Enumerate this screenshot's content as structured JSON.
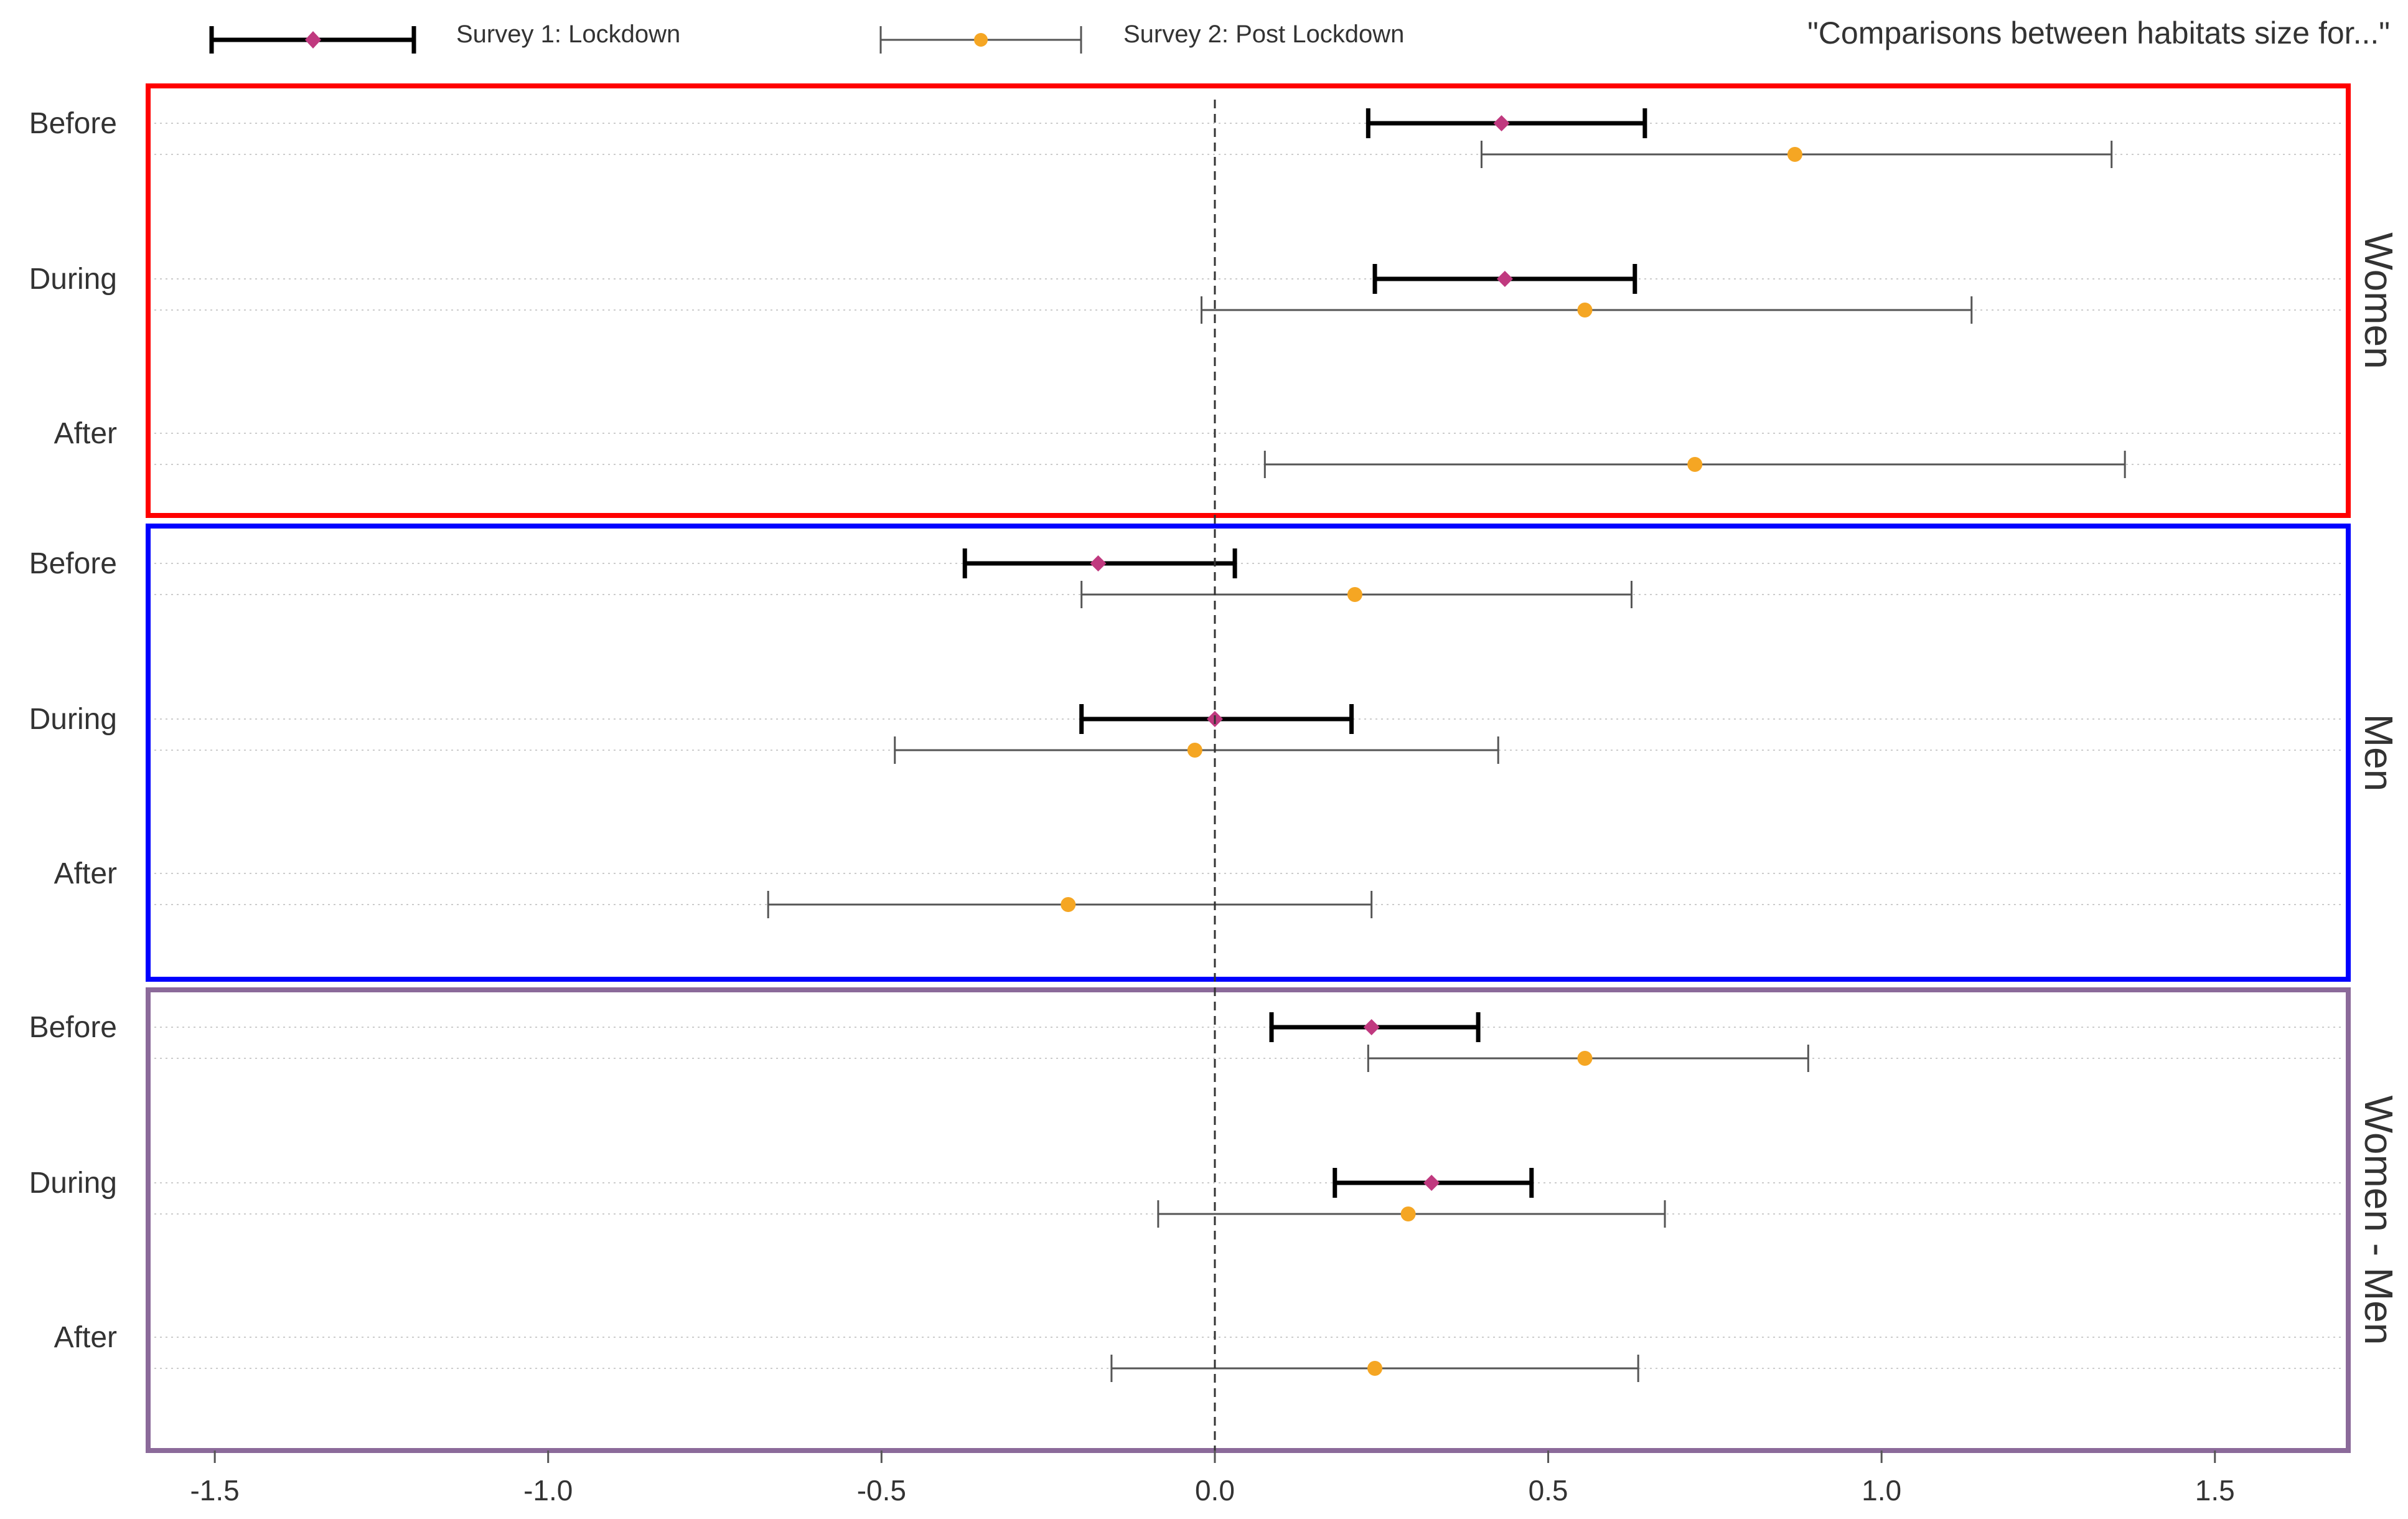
{
  "chart_data": {
    "type": "forest",
    "title": "\"Comparisons between habitats size for...\"",
    "xlim": [
      -1.6,
      1.7
    ],
    "x_ticks": [
      -1.5,
      -1.0,
      -0.5,
      0.0,
      0.5,
      1.0,
      1.5
    ],
    "x_tick_labels": [
      "-1.5",
      "-1.0",
      "-0.5",
      "0.0",
      "0.5",
      "1.0",
      "1.5"
    ],
    "reference_line": 0.0,
    "legend": [
      {
        "name": "Survey 1: Lockdown",
        "color": "#000000",
        "marker": "diamond",
        "marker_color": "#c0397f"
      },
      {
        "name": "Survey 2: Post Lockdown",
        "color": "#555555",
        "marker": "circle",
        "marker_color": "#f5a623"
      }
    ],
    "panels": [
      {
        "name": "Women",
        "border_color": "#ff0000",
        "rows": [
          {
            "label": "Before",
            "survey1": {
              "est": 0.43,
              "lo": 0.23,
              "hi": 0.645
            },
            "survey2": {
              "est": 0.87,
              "lo": 0.4,
              "hi": 1.345
            }
          },
          {
            "label": "During",
            "survey1": {
              "est": 0.435,
              "lo": 0.24,
              "hi": 0.63
            },
            "survey2": {
              "est": 0.555,
              "lo": -0.02,
              "hi": 1.135
            }
          },
          {
            "label": "After",
            "survey1": null,
            "survey2": {
              "est": 0.72,
              "lo": 0.075,
              "hi": 1.365
            }
          }
        ]
      },
      {
        "name": "Men",
        "border_color": "#0000ff",
        "rows": [
          {
            "label": "Before",
            "survey1": {
              "est": -0.175,
              "lo": -0.375,
              "hi": 0.03
            },
            "survey2": {
              "est": 0.21,
              "lo": -0.2,
              "hi": 0.625
            }
          },
          {
            "label": "During",
            "survey1": {
              "est": 0.0,
              "lo": -0.2,
              "hi": 0.205
            },
            "survey2": {
              "est": -0.03,
              "lo": -0.48,
              "hi": 0.425
            }
          },
          {
            "label": "After",
            "survey1": null,
            "survey2": {
              "est": -0.22,
              "lo": -0.67,
              "hi": 0.235
            }
          }
        ]
      },
      {
        "name": "Women - Men",
        "border_color": "#8b6a9a",
        "rows": [
          {
            "label": "Before",
            "survey1": {
              "est": 0.235,
              "lo": 0.085,
              "hi": 0.395
            },
            "survey2": {
              "est": 0.555,
              "lo": 0.23,
              "hi": 0.89
            }
          },
          {
            "label": "During",
            "survey1": {
              "est": 0.325,
              "lo": 0.18,
              "hi": 0.475
            },
            "survey2": {
              "est": 0.29,
              "lo": -0.085,
              "hi": 0.675
            }
          },
          {
            "label": "After",
            "survey1": null,
            "survey2": {
              "est": 0.24,
              "lo": -0.155,
              "hi": 0.635
            }
          }
        ]
      }
    ]
  }
}
